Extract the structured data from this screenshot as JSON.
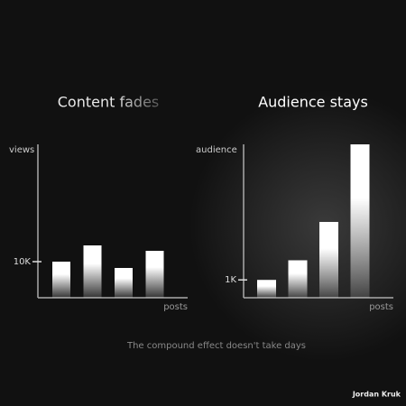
{
  "chart_data": [
    {
      "type": "bar",
      "title": "Content fades",
      "y_label": "views",
      "x_label": "posts",
      "categories": [
        null,
        null,
        null,
        null
      ],
      "values": [
        10000,
        14500,
        8250,
        13000
      ],
      "color": "#ffffff",
      "ylim": [
        0,
        42500
      ],
      "yticks": [
        {
          "value": 10000,
          "label": "10K"
        }
      ],
      "grid": false
    },
    {
      "type": "bar",
      "title": "Audience stays",
      "y_label": "audience",
      "x_label": "posts",
      "categories": [
        null,
        null,
        null,
        null
      ],
      "values": [
        1000,
        2100,
        4250,
        8600
      ],
      "color": "#ffffff",
      "ylim": [
        0,
        8600
      ],
      "yticks": [
        {
          "value": 1000,
          "label": "1K"
        }
      ],
      "grid": false
    }
  ],
  "caption": "The compound effect doesn't take days",
  "credit": "Jordan Kruk"
}
